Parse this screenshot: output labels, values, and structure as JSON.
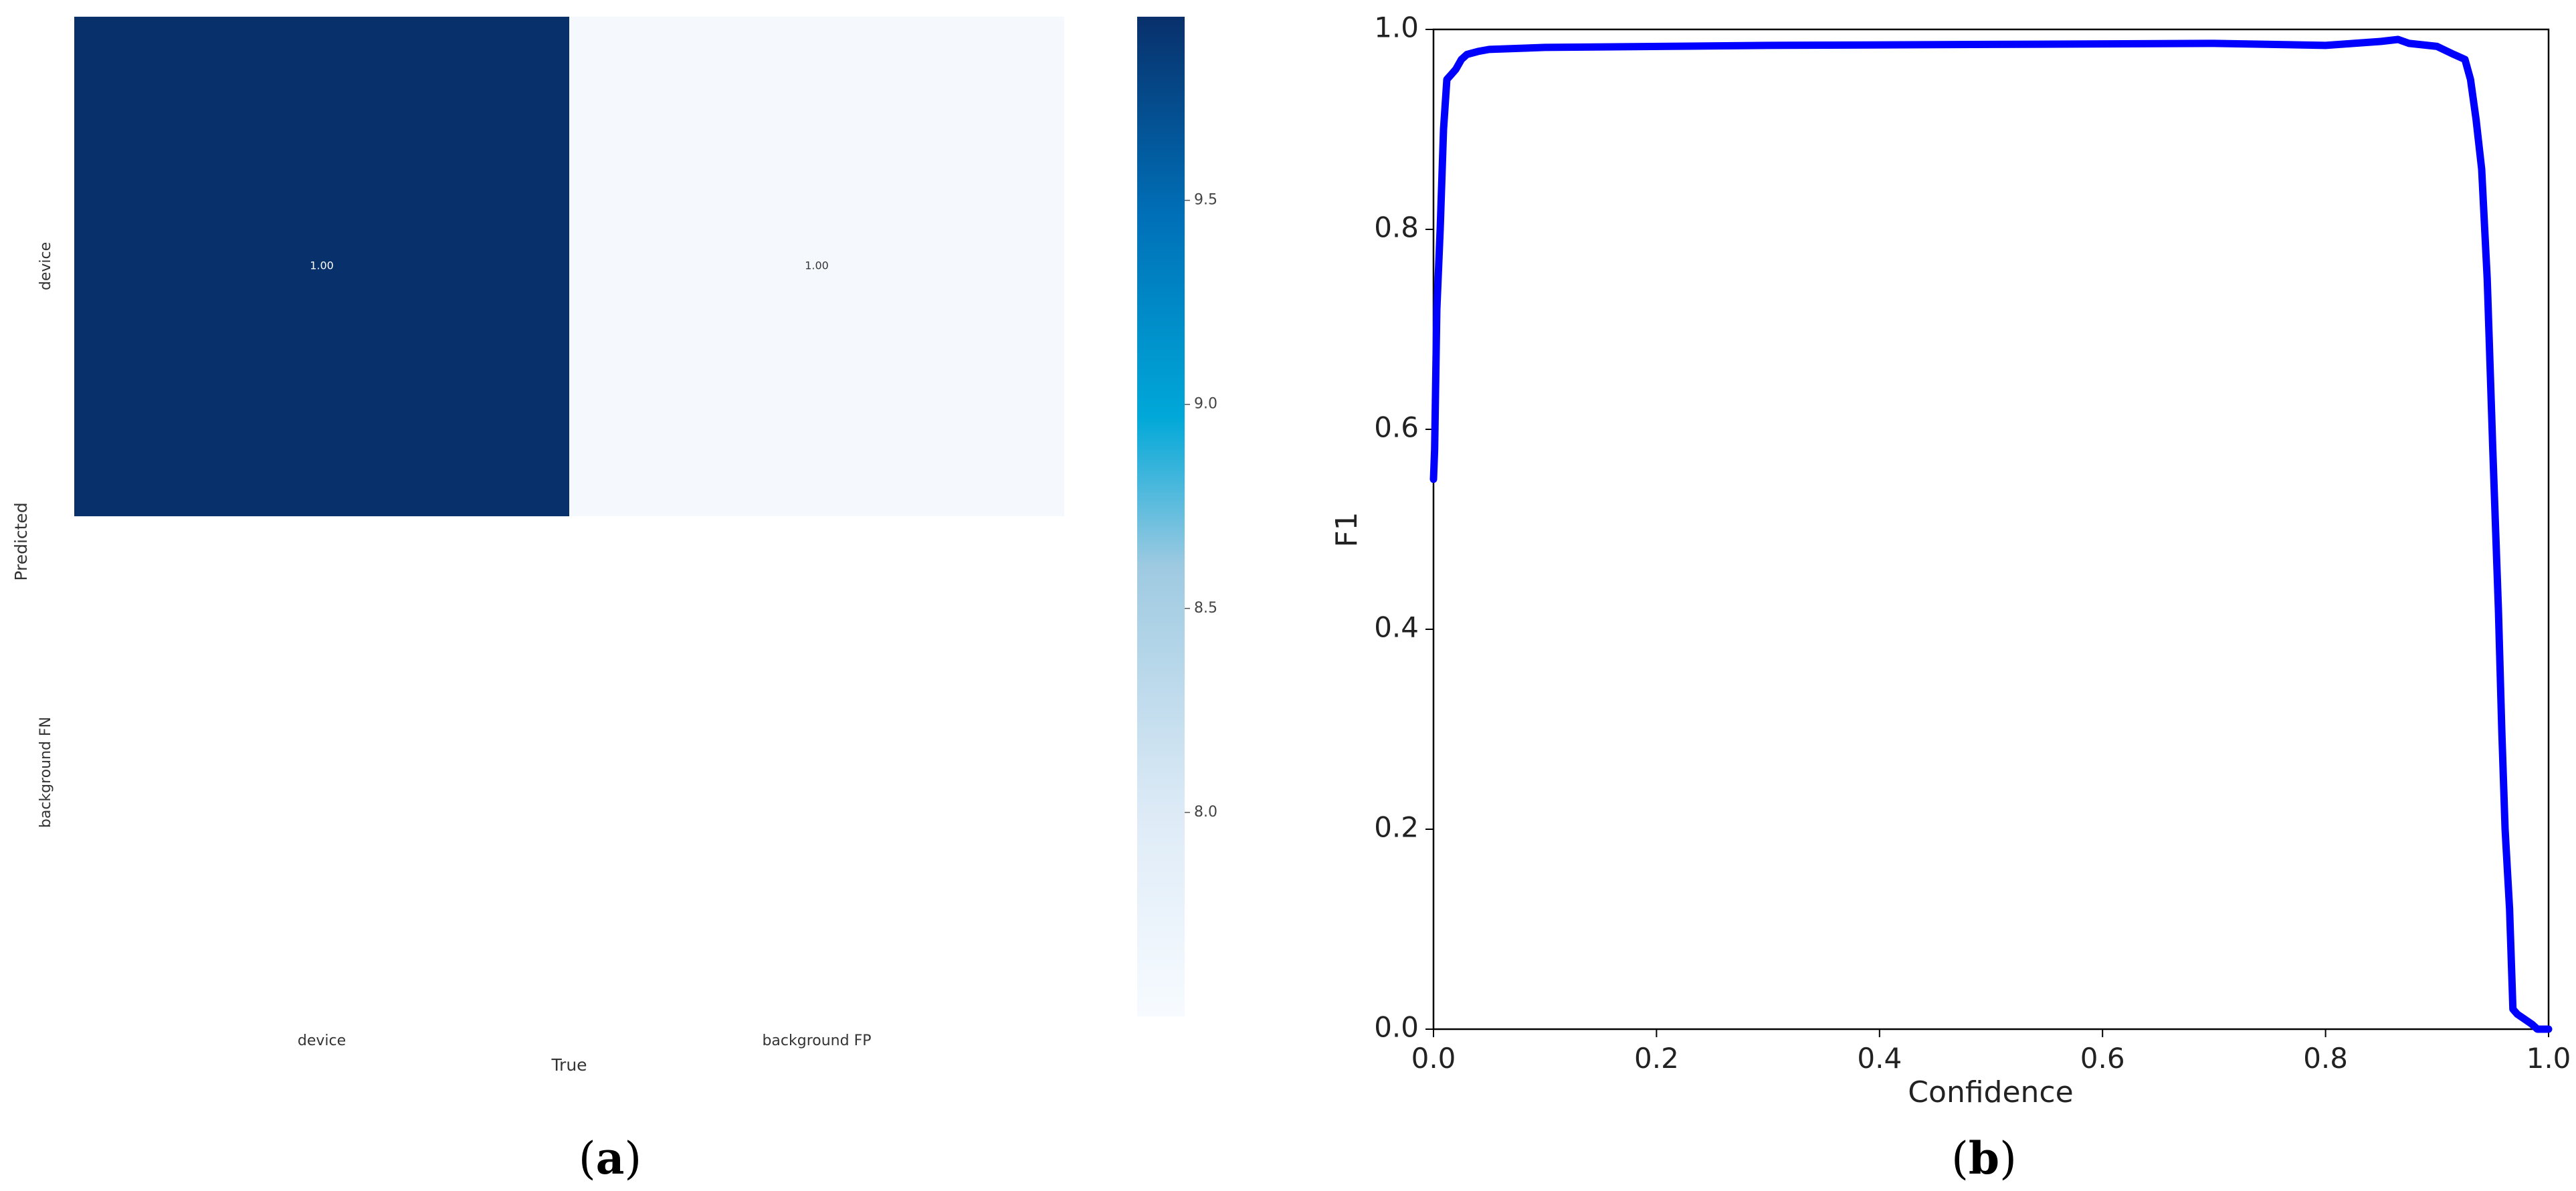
{
  "panels": {
    "a": {
      "label_open": "(",
      "label_letter": "a",
      "label_close": ")"
    },
    "b": {
      "label_open": "(",
      "label_letter": "b",
      "label_close": ")"
    }
  },
  "chart_data": [
    {
      "type": "heatmap",
      "title": "",
      "xlabel": "True",
      "ylabel": "Predicted",
      "x_categories": [
        "device",
        "background FP"
      ],
      "y_categories": [
        "device",
        "background FN"
      ],
      "cells": [
        {
          "row": 0,
          "col": 0,
          "value": 1.0,
          "label": "1.00",
          "color": "#08306b",
          "label_color": "#ffffff"
        },
        {
          "row": 0,
          "col": 1,
          "value": 1.0,
          "label": "1.00",
          "color": "#f5f9fe",
          "label_color": "#333333"
        }
      ],
      "colorbar": {
        "ticks": [
          8.0,
          8.5,
          9.0,
          9.5
        ],
        "tick_labels": [
          "8.0",
          "8.5",
          "9.0",
          "9.5"
        ],
        "range": [
          7.5,
          9.95
        ],
        "colors": [
          "#f7fbff",
          "#deebf7",
          "#9ecae1",
          "#00a8d8",
          "#0070b8",
          "#08306b"
        ]
      }
    },
    {
      "type": "line",
      "title": "",
      "xlabel": "Confidence",
      "ylabel": "F1",
      "xlim": [
        0.0,
        1.0
      ],
      "ylim": [
        0.0,
        1.0
      ],
      "x_ticks": [
        "0.0",
        "0.2",
        "0.4",
        "0.6",
        "0.8",
        "1.0"
      ],
      "y_ticks": [
        "0.0",
        "0.2",
        "0.4",
        "0.6",
        "0.8",
        "1.0"
      ],
      "grid": false,
      "line_color": "#0000ff",
      "series": [
        {
          "x": [
            0.0,
            0.001,
            0.003,
            0.006,
            0.009,
            0.012,
            0.016,
            0.02,
            0.025,
            0.03,
            0.04,
            0.05,
            0.1,
            0.3,
            0.5,
            0.7,
            0.8,
            0.85,
            0.865,
            0.875,
            0.9,
            0.915,
            0.925,
            0.93,
            0.935,
            0.94,
            0.945,
            0.95,
            0.955,
            0.958,
            0.961,
            0.965,
            0.968,
            0.972,
            0.985,
            0.99,
            1.0
          ],
          "y": [
            0.55,
            0.58,
            0.72,
            0.8,
            0.9,
            0.95,
            0.955,
            0.96,
            0.97,
            0.975,
            0.978,
            0.98,
            0.982,
            0.984,
            0.985,
            0.986,
            0.984,
            0.988,
            0.99,
            0.986,
            0.983,
            0.975,
            0.97,
            0.95,
            0.91,
            0.86,
            0.75,
            0.58,
            0.42,
            0.3,
            0.2,
            0.12,
            0.02,
            0.015,
            0.005,
            0.0,
            0.0
          ]
        }
      ]
    }
  ]
}
